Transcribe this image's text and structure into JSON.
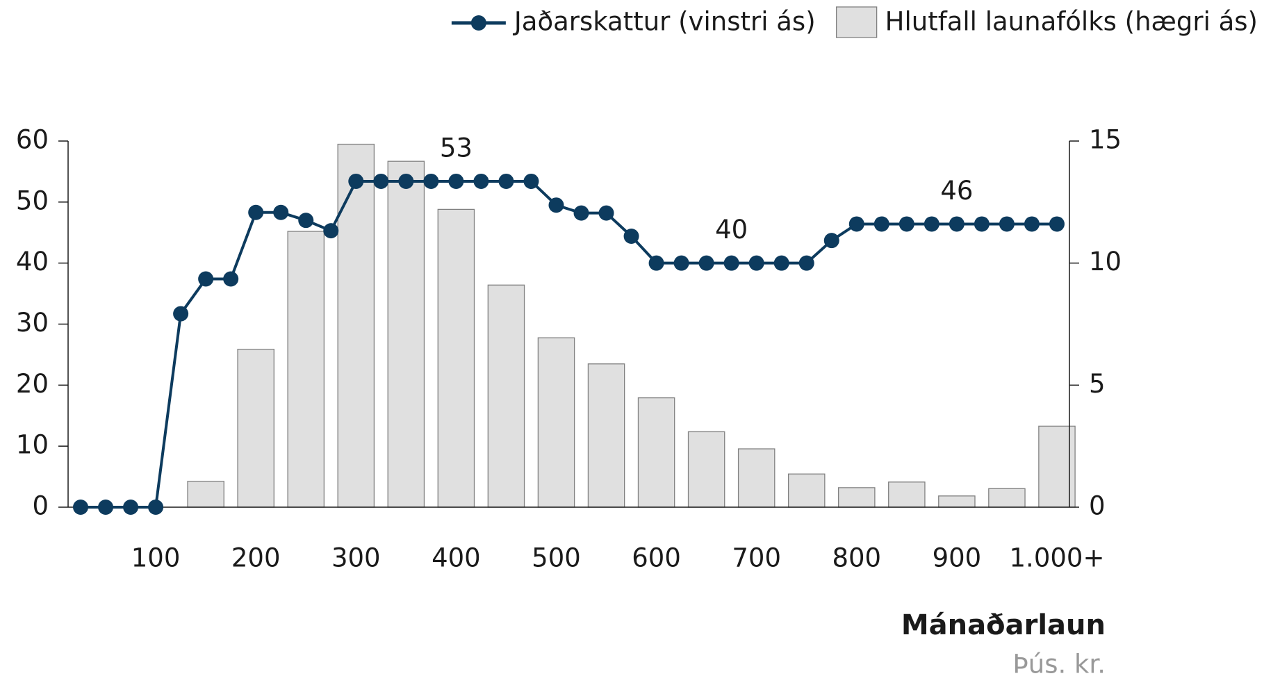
{
  "chart_data": {
    "type": "bar-line",
    "legend": "top-right",
    "xlabel": "Mánaðarlaun",
    "xsublabel": "Þús. kr.",
    "xlim": [
      12.5,
      1012.5
    ],
    "xticks": [
      100,
      200,
      300,
      400,
      500,
      600,
      700,
      800,
      900,
      {
        "value": 1000,
        "label": "1.000+"
      }
    ],
    "ylim": [
      0,
      60
    ],
    "yticks": [
      0,
      10,
      20,
      30,
      40,
      50,
      60
    ],
    "y2lim": [
      0,
      15
    ],
    "y2ticks": [
      0,
      5,
      10,
      15
    ],
    "series": [
      {
        "name": "Jaðarskattur (vinstri ás)",
        "type": "line",
        "color": "#0d3b5e",
        "x": [
          25,
          50,
          75,
          100,
          125,
          150,
          175,
          200,
          225,
          250,
          275,
          300,
          325,
          350,
          375,
          400,
          425,
          450,
          475,
          500,
          525,
          550,
          575,
          600,
          625,
          650,
          675,
          700,
          725,
          750,
          775,
          800,
          825,
          850,
          875,
          900,
          925,
          950,
          975,
          1000
        ],
        "values": [
          0,
          0,
          0,
          0,
          31.7,
          37.4,
          37.4,
          48.3,
          48.3,
          47,
          45.3,
          53.4,
          53.4,
          53.4,
          53.4,
          53.4,
          53.4,
          53.4,
          53.4,
          49.5,
          48.2,
          48.2,
          44.4,
          40,
          40,
          40,
          40,
          40,
          40,
          40,
          43.7,
          46.4,
          46.4,
          46.4,
          46.4,
          46.4,
          46.4,
          46.4,
          46.4,
          46.4
        ],
        "value_labels": [
          null,
          null,
          null,
          null,
          null,
          null,
          null,
          null,
          null,
          null,
          null,
          null,
          null,
          null,
          null,
          "53",
          null,
          null,
          null,
          null,
          null,
          null,
          null,
          null,
          null,
          null,
          "40",
          null,
          null,
          null,
          null,
          null,
          null,
          null,
          null,
          "46",
          null,
          null,
          null,
          null
        ]
      },
      {
        "name": "Hlutfall launafólks (hægri ás)",
        "type": "bar",
        "axis": "y2",
        "color": "#e0e0e0",
        "edgecolor": "#808080",
        "x": [
          150,
          200,
          250,
          300,
          350,
          400,
          450,
          500,
          550,
          600,
          650,
          700,
          750,
          800,
          850,
          900,
          950,
          1000
        ],
        "values": [
          1.06,
          6.47,
          11.3,
          14.87,
          14.17,
          12.2,
          9.1,
          6.94,
          5.87,
          4.48,
          3.09,
          2.39,
          1.36,
          0.8,
          1.03,
          0.46,
          0.76,
          3.32
        ]
      }
    ]
  }
}
